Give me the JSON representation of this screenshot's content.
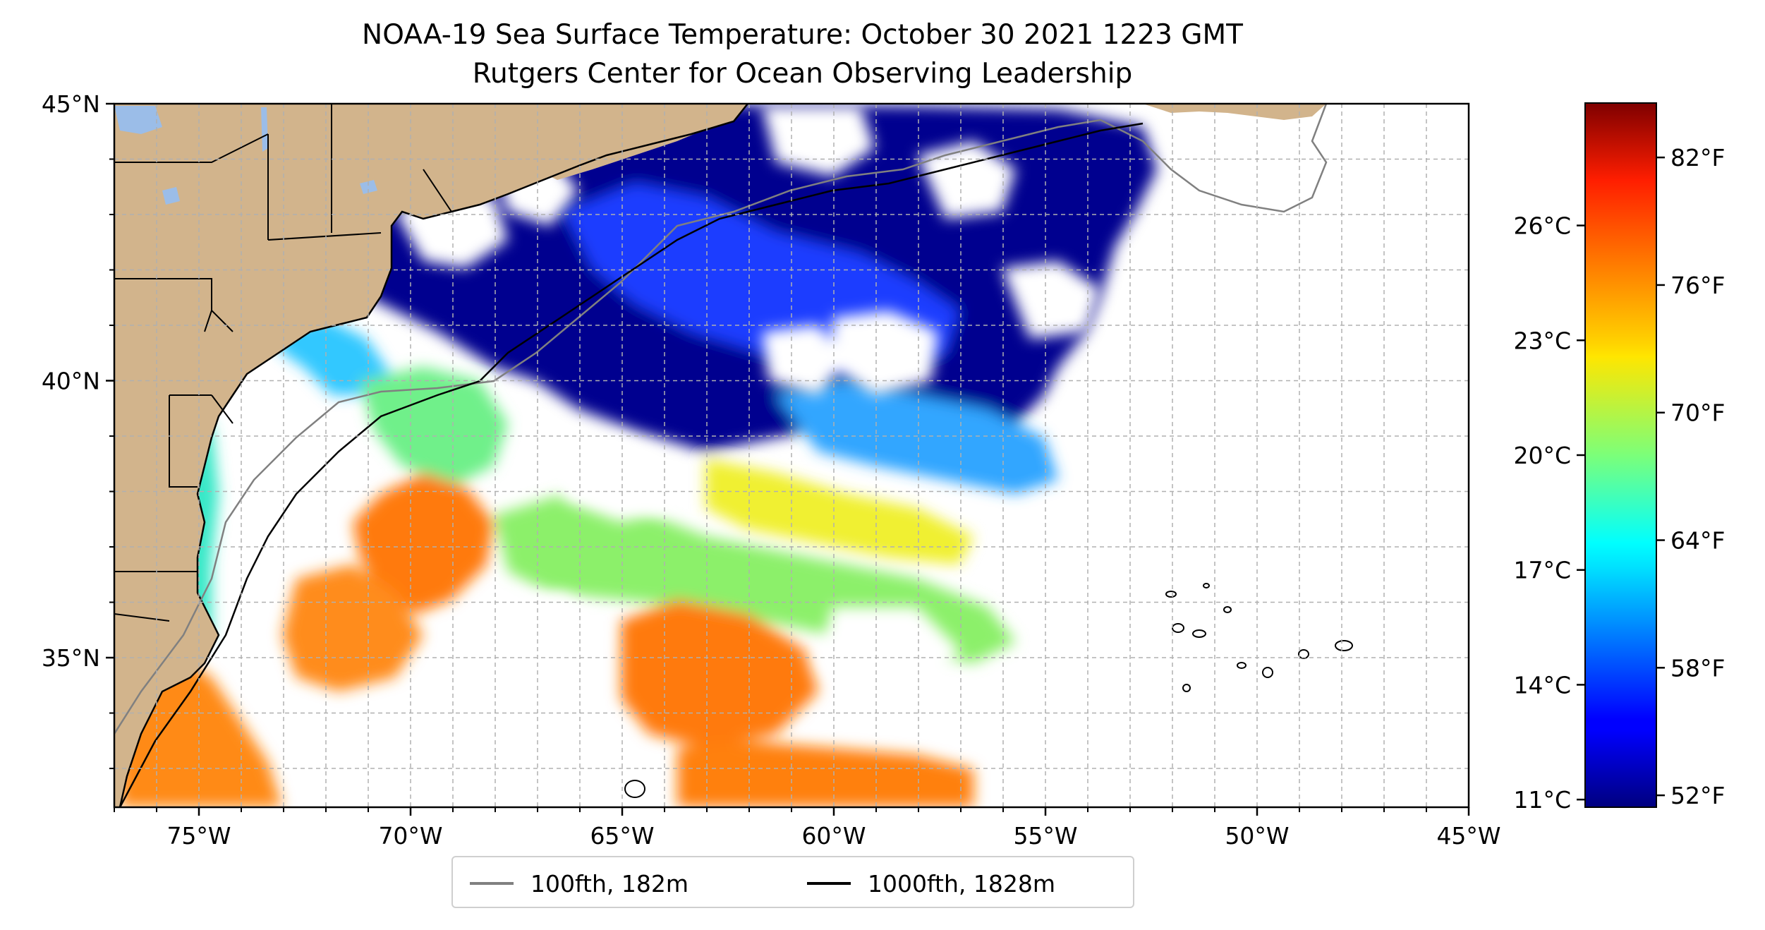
{
  "title_line1": "NOAA-19 Sea Surface Temperature: October 30 2021 1223 GMT",
  "title_line2": "Rutgers Center for Ocean Observing Leadership",
  "map": {
    "lon_range": [
      -77,
      -45
    ],
    "lat_range": [
      32.3,
      45
    ],
    "lon_ticks": [
      {
        "value": -75,
        "label": "75°W"
      },
      {
        "value": -70,
        "label": "70°W"
      },
      {
        "value": -65,
        "label": "65°W"
      },
      {
        "value": -60,
        "label": "60°W"
      },
      {
        "value": -55,
        "label": "55°W"
      },
      {
        "value": -50,
        "label": "50°W"
      },
      {
        "value": -45,
        "label": "45°W"
      }
    ],
    "lat_ticks": [
      {
        "value": 45,
        "label": "45°N"
      },
      {
        "value": 40,
        "label": "40°N"
      },
      {
        "value": 35,
        "label": "35°N"
      }
    ],
    "gridlines": "dashed, every 1°",
    "land_color": "#d2b48c",
    "lake_color": "#9bbde8",
    "cloud_mask_color": "#ffffff"
  },
  "colorbar": {
    "colormap": "jet",
    "celsius_range": [
      10.8,
      29.2
    ],
    "celsius_ticks": [
      {
        "value": 11,
        "label": "11°C"
      },
      {
        "value": 14,
        "label": "14°C"
      },
      {
        "value": 17,
        "label": "17°C"
      },
      {
        "value": 20,
        "label": "20°C"
      },
      {
        "value": 23,
        "label": "23°C"
      },
      {
        "value": 26,
        "label": "26°C"
      }
    ],
    "fahrenheit_ticks": [
      {
        "value": 52,
        "label": "52°F"
      },
      {
        "value": 58,
        "label": "58°F"
      },
      {
        "value": 64,
        "label": "64°F"
      },
      {
        "value": 70,
        "label": "70°F"
      },
      {
        "value": 76,
        "label": "76°F"
      },
      {
        "value": 82,
        "label": "82°F"
      }
    ]
  },
  "legend": {
    "items": [
      {
        "label": "100fth, 182m",
        "color": "#808080"
      },
      {
        "label": "1000fth, 1828m",
        "color": "#000000"
      }
    ]
  }
}
